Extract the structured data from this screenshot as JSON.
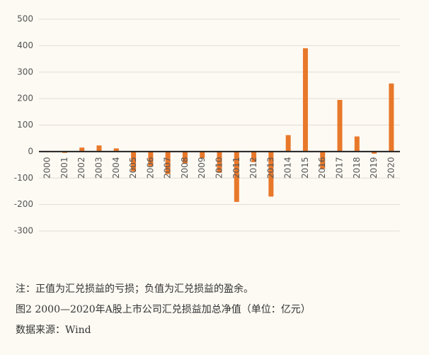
{
  "chart_data": {
    "type": "bar",
    "categories": [
      "2000",
      "2001",
      "2002",
      "2003",
      "2004",
      "2005",
      "2006",
      "2007",
      "2008",
      "2009",
      "2010",
      "2011",
      "2012",
      "2013",
      "2014",
      "2015",
      "2016",
      "2017",
      "2018",
      "2019",
      "2020"
    ],
    "values": [
      -2,
      -5,
      15,
      23,
      12,
      -75,
      -55,
      -85,
      -45,
      -25,
      -80,
      -190,
      -40,
      -170,
      62,
      390,
      -65,
      195,
      57,
      -8,
      257
    ],
    "color": "#e8782a",
    "ylim": [
      -300,
      500
    ],
    "yticks": [
      -300,
      -200,
      -100,
      0,
      100,
      200,
      300,
      400,
      500
    ],
    "grid": true
  },
  "notes": [
    "注：正值为汇兑损益的亏损；负值为汇兑损益的盈余。",
    "图2  2000—2020年A股上市公司汇兑损益加总净值（单位：亿元）",
    "数据来源：Wind"
  ]
}
